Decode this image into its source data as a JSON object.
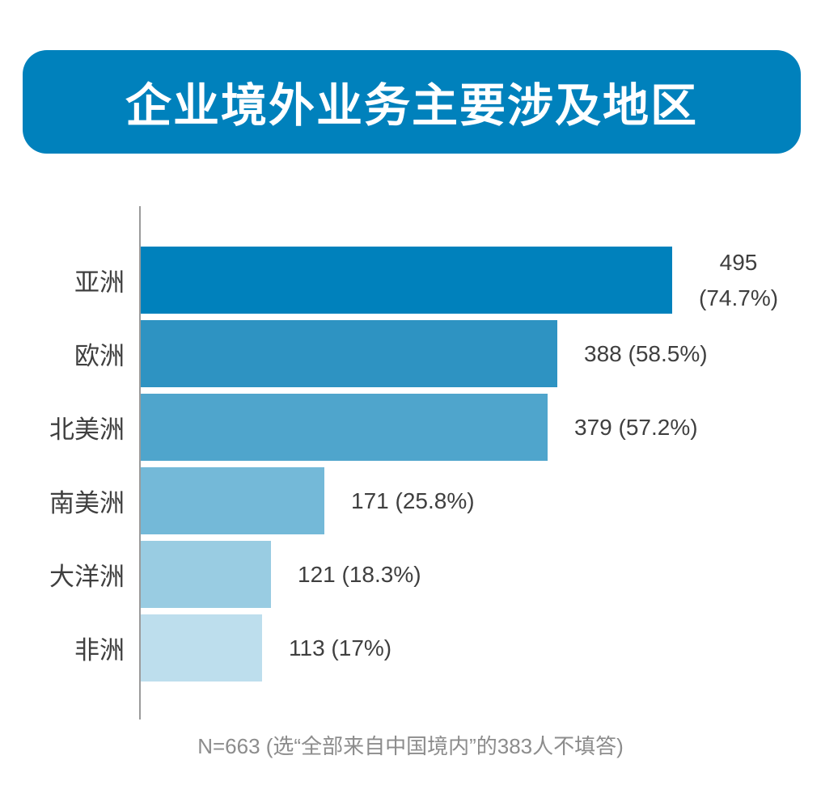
{
  "header": {
    "title": "企业境外业务主要涉及地区"
  },
  "footer": {
    "note": "N=663 (选“全部来自中国境内”的383人不填答)"
  },
  "colors": {
    "page_background": "#FFFFFF",
    "banner_background": "#0081BC",
    "banner_text": "#FFFFFF",
    "axis_line": "#9B9B9B",
    "category_label": "#3F3F3F",
    "value_label": "#3F3F3F",
    "footnote_text": "#8C8C8C"
  },
  "chart_data": {
    "type": "bar",
    "orientation": "horizontal",
    "title": "企业境外业务主要涉及地区",
    "categories": [
      "亚洲",
      "欧洲",
      "北美洲",
      "南美洲",
      "大洋洲",
      "非洲"
    ],
    "values": [
      495,
      388,
      379,
      171,
      121,
      113
    ],
    "percents": [
      74.7,
      58.5,
      57.2,
      25.8,
      18.3,
      17
    ],
    "value_labels": [
      [
        "495",
        "(74.7%)"
      ],
      [
        "388 (58.5%)"
      ],
      [
        "379 (57.2%)"
      ],
      [
        "171 (25.8%)"
      ],
      [
        "121 (18.3%)"
      ],
      [
        "113 (17%)"
      ]
    ],
    "bar_colors": [
      "#0081BC",
      "#2E93C2",
      "#4FA5CC",
      "#74B9D8",
      "#99CCE2",
      "#BDDEED"
    ],
    "total_n": 663,
    "footnote": "N=663 (选“全部来自中国境内”的383人不填答)",
    "xlim": [
      0,
      530
    ],
    "grid": false,
    "legend": false
  }
}
